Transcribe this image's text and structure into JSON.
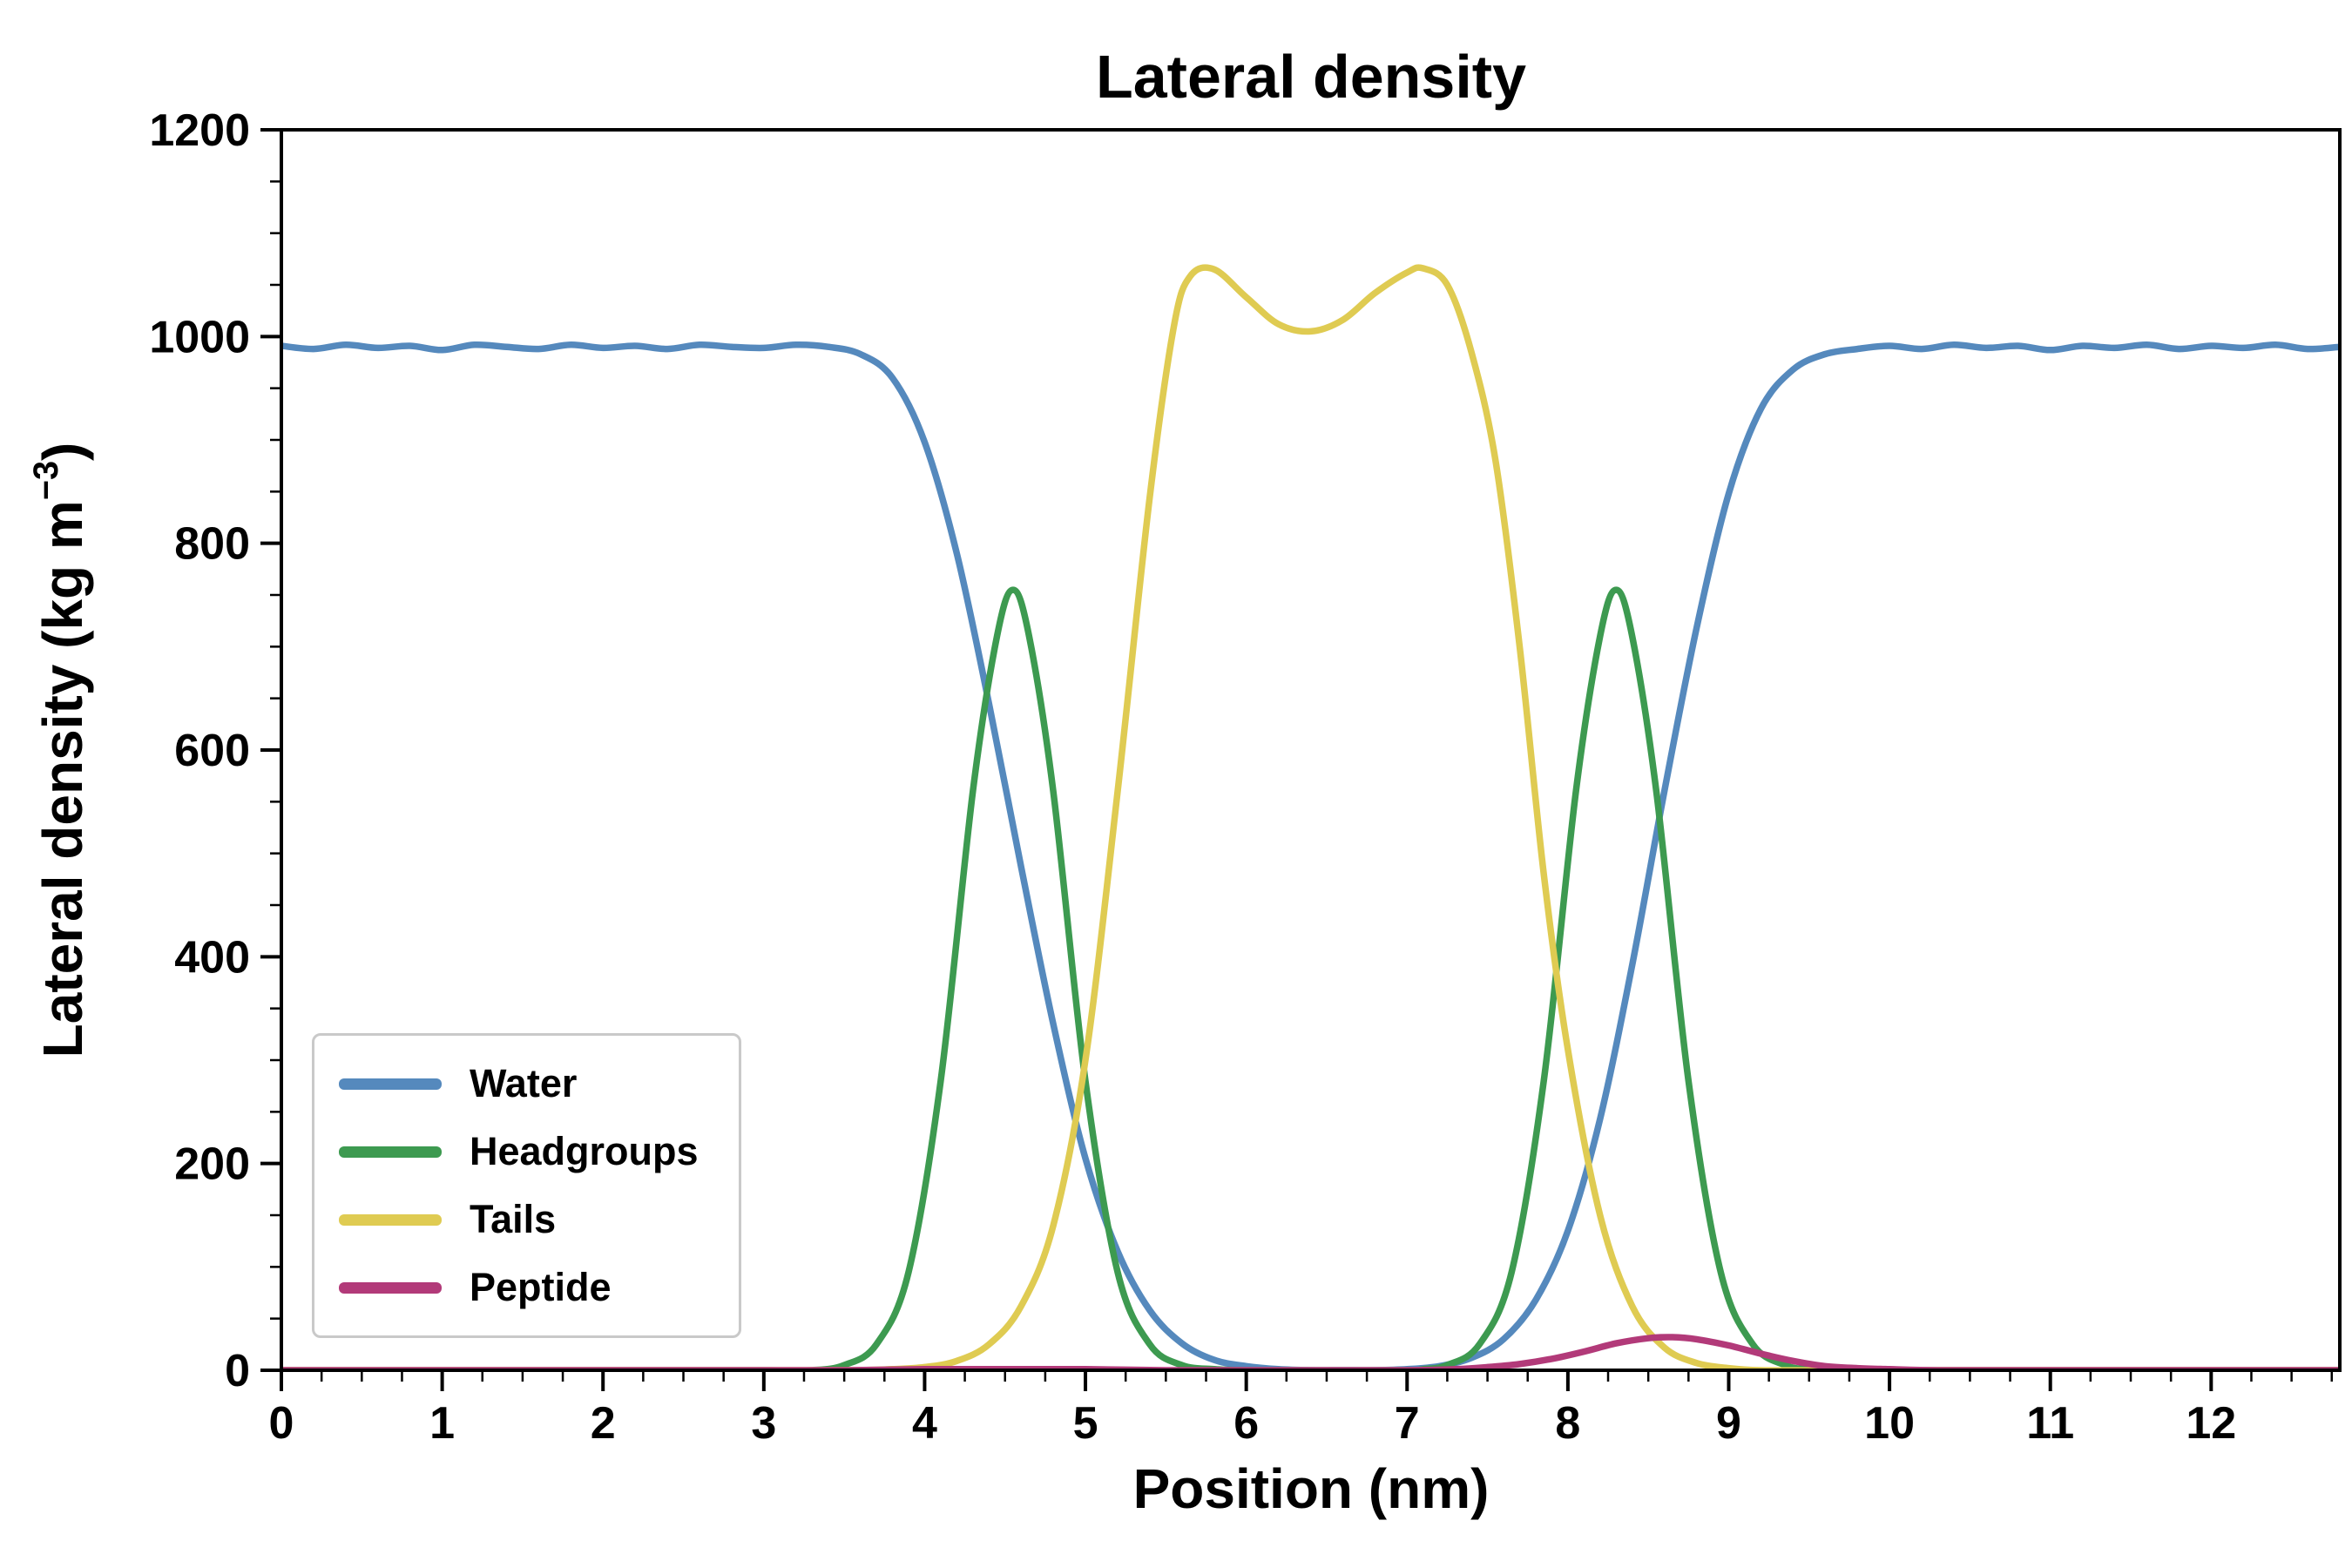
{
  "chart_data": {
    "type": "line",
    "title": "Lateral density",
    "xlabel": "Position (nm)",
    "ylabel": "Lateral density (kg m⁻³)",
    "ylabel_parts": {
      "pre": "Lateral density (kg m",
      "sup": "−3",
      "post": ")"
    },
    "xlim": [
      0,
      12.8
    ],
    "ylim": [
      0,
      1200
    ],
    "x_major_ticks": [
      0,
      1,
      2,
      3,
      4,
      5,
      6,
      7,
      8,
      9,
      10,
      11,
      12
    ],
    "x_minor_step": 0.25,
    "y_major_ticks": [
      0,
      200,
      400,
      600,
      800,
      1000,
      1200
    ],
    "y_minor_step": 50,
    "grid": false,
    "legend_position": "lower left",
    "frame_color": "#000000",
    "legend_border_color": "#c9c9c9",
    "series": [
      {
        "name": "Water",
        "color": "#5589bd",
        "points": [
          [
            0,
            991
          ],
          [
            0.2,
            988
          ],
          [
            0.4,
            992
          ],
          [
            0.6,
            989
          ],
          [
            0.8,
            991
          ],
          [
            1,
            987
          ],
          [
            1.2,
            992
          ],
          [
            1.4,
            990
          ],
          [
            1.6,
            988
          ],
          [
            1.8,
            992
          ],
          [
            2,
            989
          ],
          [
            2.2,
            991
          ],
          [
            2.4,
            988
          ],
          [
            2.6,
            992
          ],
          [
            2.8,
            990
          ],
          [
            3,
            989
          ],
          [
            3.2,
            992
          ],
          [
            3.4,
            990
          ],
          [
            3.6,
            983
          ],
          [
            3.8,
            960
          ],
          [
            4,
            898
          ],
          [
            4.2,
            790
          ],
          [
            4.4,
            645
          ],
          [
            4.6,
            487
          ],
          [
            4.8,
            335
          ],
          [
            5,
            205
          ],
          [
            5.2,
            115
          ],
          [
            5.4,
            58
          ],
          [
            5.6,
            26
          ],
          [
            5.8,
            10
          ],
          [
            6,
            4
          ],
          [
            6.2,
            1
          ],
          [
            6.4,
            0
          ],
          [
            6.6,
            0
          ],
          [
            6.8,
            0
          ],
          [
            7,
            1
          ],
          [
            7.2,
            4
          ],
          [
            7.4,
            12
          ],
          [
            7.6,
            30
          ],
          [
            7.8,
            68
          ],
          [
            8,
            135
          ],
          [
            8.2,
            243
          ],
          [
            8.4,
            392
          ],
          [
            8.6,
            560
          ],
          [
            8.8,
            718
          ],
          [
            9,
            848
          ],
          [
            9.2,
            930
          ],
          [
            9.4,
            968
          ],
          [
            9.6,
            983
          ],
          [
            9.8,
            988
          ],
          [
            10,
            991
          ],
          [
            10.2,
            988
          ],
          [
            10.4,
            992
          ],
          [
            10.6,
            989
          ],
          [
            10.8,
            991
          ],
          [
            11,
            987
          ],
          [
            11.2,
            991
          ],
          [
            11.4,
            989
          ],
          [
            11.6,
            992
          ],
          [
            11.8,
            988
          ],
          [
            12,
            991
          ],
          [
            12.2,
            989
          ],
          [
            12.4,
            992
          ],
          [
            12.6,
            988
          ],
          [
            12.8,
            990
          ]
        ]
      },
      {
        "name": "Headgroups",
        "color": "#3d9a50",
        "points": [
          [
            0,
            0
          ],
          [
            0.5,
            0
          ],
          [
            1,
            0
          ],
          [
            1.5,
            0
          ],
          [
            2,
            0
          ],
          [
            2.5,
            0
          ],
          [
            3,
            0
          ],
          [
            3.3,
            0
          ],
          [
            3.5,
            5
          ],
          [
            3.7,
            25
          ],
          [
            3.9,
            95
          ],
          [
            4.1,
            280
          ],
          [
            4.3,
            560
          ],
          [
            4.45,
            710
          ],
          [
            4.55,
            755
          ],
          [
            4.65,
            710
          ],
          [
            4.8,
            560
          ],
          [
            5,
            280
          ],
          [
            5.2,
            95
          ],
          [
            5.4,
            25
          ],
          [
            5.6,
            5
          ],
          [
            5.8,
            1
          ],
          [
            6,
            0
          ],
          [
            6.5,
            0
          ],
          [
            7,
            0
          ],
          [
            7.1,
            1
          ],
          [
            7.25,
            5
          ],
          [
            7.45,
            25
          ],
          [
            7.65,
            95
          ],
          [
            7.85,
            280
          ],
          [
            8.05,
            560
          ],
          [
            8.2,
            710
          ],
          [
            8.3,
            755
          ],
          [
            8.4,
            710
          ],
          [
            8.55,
            560
          ],
          [
            8.75,
            280
          ],
          [
            8.95,
            95
          ],
          [
            9.15,
            25
          ],
          [
            9.35,
            5
          ],
          [
            9.5,
            1
          ],
          [
            9.7,
            0
          ],
          [
            10,
            0
          ],
          [
            10.5,
            0
          ],
          [
            11,
            0
          ],
          [
            11.5,
            0
          ],
          [
            12,
            0
          ],
          [
            12.8,
            0
          ]
        ]
      },
      {
        "name": "Tails",
        "color": "#dfcb52",
        "points": [
          [
            0,
            0
          ],
          [
            0.5,
            0
          ],
          [
            1,
            0
          ],
          [
            1.5,
            0
          ],
          [
            2,
            0
          ],
          [
            2.5,
            0
          ],
          [
            3,
            0
          ],
          [
            3.5,
            0
          ],
          [
            3.8,
            1
          ],
          [
            4,
            3
          ],
          [
            4.2,
            9
          ],
          [
            4.4,
            25
          ],
          [
            4.6,
            62
          ],
          [
            4.8,
            140
          ],
          [
            5,
            300
          ],
          [
            5.2,
            560
          ],
          [
            5.4,
            845
          ],
          [
            5.55,
            1010
          ],
          [
            5.65,
            1058
          ],
          [
            5.8,
            1065
          ],
          [
            6,
            1038
          ],
          [
            6.2,
            1012
          ],
          [
            6.4,
            1005
          ],
          [
            6.6,
            1016
          ],
          [
            6.8,
            1042
          ],
          [
            7,
            1062
          ],
          [
            7.1,
            1066
          ],
          [
            7.25,
            1050
          ],
          [
            7.4,
            985
          ],
          [
            7.55,
            880
          ],
          [
            7.7,
            700
          ],
          [
            7.85,
            480
          ],
          [
            8,
            310
          ],
          [
            8.2,
            150
          ],
          [
            8.4,
            62
          ],
          [
            8.6,
            22
          ],
          [
            8.8,
            7
          ],
          [
            9,
            2
          ],
          [
            9.2,
            0
          ],
          [
            9.6,
            0
          ],
          [
            10,
            0
          ],
          [
            10.5,
            0
          ],
          [
            11,
            0
          ],
          [
            11.5,
            0
          ],
          [
            12,
            0
          ],
          [
            12.8,
            0
          ]
        ]
      },
      {
        "name": "Peptide",
        "color": "#b23a79",
        "points": [
          [
            0,
            0
          ],
          [
            0.5,
            0
          ],
          [
            1,
            0
          ],
          [
            1.5,
            0
          ],
          [
            2,
            0
          ],
          [
            2.5,
            0
          ],
          [
            3,
            0
          ],
          [
            3.5,
            0
          ],
          [
            4,
            1
          ],
          [
            4.5,
            1
          ],
          [
            5,
            1
          ],
          [
            5.5,
            0
          ],
          [
            6,
            0
          ],
          [
            6.5,
            0
          ],
          [
            7,
            0
          ],
          [
            7.3,
            1
          ],
          [
            7.5,
            3
          ],
          [
            7.7,
            6
          ],
          [
            7.9,
            11
          ],
          [
            8.1,
            18
          ],
          [
            8.3,
            26
          ],
          [
            8.5,
            31
          ],
          [
            8.65,
            32
          ],
          [
            8.8,
            30
          ],
          [
            9,
            24
          ],
          [
            9.2,
            16
          ],
          [
            9.4,
            9
          ],
          [
            9.6,
            4
          ],
          [
            9.8,
            2
          ],
          [
            10,
            1
          ],
          [
            10.3,
            0
          ],
          [
            10.8,
            0
          ],
          [
            11.5,
            0
          ],
          [
            12,
            0
          ],
          [
            12.8,
            0
          ]
        ]
      }
    ]
  }
}
